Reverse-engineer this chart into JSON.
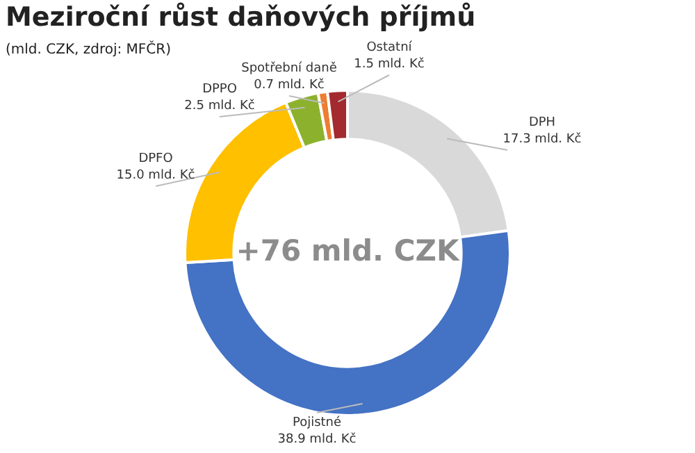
{
  "chart_data": {
    "type": "donut",
    "title": "Meziroční růst daňových příjmů",
    "subtitle": "(mld. CZK, zdroj: MFČR)",
    "categories": [
      "DPH",
      "Pojistné",
      "DPFO",
      "DPPO",
      "Spotřební daně",
      "Ostatní"
    ],
    "values": [
      17.3,
      38.9,
      15.0,
      2.5,
      0.7,
      1.5
    ],
    "colors": [
      "#d9d9d9",
      "#4472c4",
      "#ffc000",
      "#8cb22d",
      "#ed7d31",
      "#a32a2e"
    ],
    "value_labels": [
      "17.3 mld. Kč",
      "38.9 mld. Kč",
      "15.0 mld. Kč",
      "2.5 mld. Kč",
      "0.7 mld. Kč",
      "1.5 mld. Kč"
    ],
    "annotations": [
      "+76 mld. CZK"
    ],
    "legend": false
  }
}
